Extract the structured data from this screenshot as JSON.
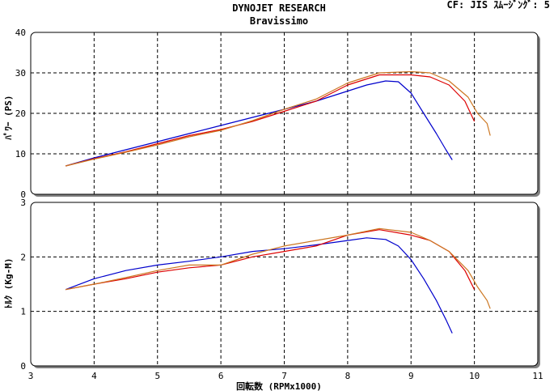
{
  "header": {
    "title": "DYNOJET  RESEARCH",
    "subtitle": "Bravissimo",
    "settings": "CF: JIS  ｽﾑｰｼﾞﾝｸﾞ: 5"
  },
  "chart_data": [
    {
      "type": "line",
      "ylabel": "ﾊﾟﾜｰ (PS)",
      "xlim": [
        3,
        11
      ],
      "ylim": [
        0,
        40
      ],
      "yticks": [
        "0",
        "10",
        "20",
        "30",
        "40"
      ],
      "grid": true,
      "series": [
        {
          "color": "#0000cc",
          "x": [
            3.55,
            4.0,
            4.5,
            5.0,
            5.5,
            6.0,
            6.5,
            7.0,
            7.5,
            8.0,
            8.3,
            8.6,
            8.8,
            9.0,
            9.2,
            9.4,
            9.55,
            9.65
          ],
          "y": [
            7.0,
            9.0,
            11.0,
            13.0,
            15.0,
            17.0,
            19.0,
            21.0,
            23.0,
            25.5,
            27.0,
            28.0,
            27.8,
            25.0,
            20.0,
            15.0,
            11.0,
            8.5
          ]
        },
        {
          "color": "#dd0000",
          "x": [
            3.55,
            4.0,
            4.5,
            5.0,
            5.5,
            6.0,
            6.5,
            7.0,
            7.5,
            8.0,
            8.5,
            9.0,
            9.3,
            9.6,
            9.85,
            10.0
          ],
          "y": [
            7.0,
            8.8,
            10.5,
            12.5,
            14.5,
            16.0,
            18.0,
            20.5,
            23.0,
            27.0,
            29.5,
            29.5,
            29.0,
            27.0,
            23.0,
            18.0
          ]
        },
        {
          "color": "#cc7722",
          "x": [
            3.55,
            4.0,
            4.5,
            5.0,
            5.5,
            6.0,
            6.5,
            7.0,
            7.5,
            8.0,
            8.5,
            9.0,
            9.3,
            9.6,
            9.9,
            10.05,
            10.2,
            10.25
          ],
          "y": [
            7.0,
            8.7,
            10.4,
            12.2,
            14.2,
            15.8,
            18.2,
            21.0,
            23.5,
            27.5,
            30.0,
            30.3,
            30.0,
            28.0,
            24.0,
            20.0,
            17.5,
            14.5
          ]
        }
      ]
    },
    {
      "type": "line",
      "xlabel": "回転数 (RPMx1000)",
      "ylabel": "ﾄﾙｸ (Kg-M)",
      "xlim": [
        3,
        11
      ],
      "ylim": [
        0,
        3
      ],
      "xticks": [
        "3",
        "4",
        "5",
        "6",
        "7",
        "8",
        "9",
        "10",
        "11"
      ],
      "yticks": [
        "0",
        "1",
        "2",
        "3"
      ],
      "grid": true,
      "series": [
        {
          "color": "#0000cc",
          "x": [
            3.55,
            4.0,
            4.5,
            5.0,
            5.5,
            6.0,
            6.5,
            7.0,
            7.5,
            8.0,
            8.3,
            8.6,
            8.8,
            9.0,
            9.2,
            9.4,
            9.55,
            9.65
          ],
          "y": [
            1.4,
            1.6,
            1.75,
            1.85,
            1.92,
            2.0,
            2.1,
            2.15,
            2.22,
            2.3,
            2.35,
            2.32,
            2.2,
            1.95,
            1.6,
            1.2,
            0.85,
            0.6
          ]
        },
        {
          "color": "#dd0000",
          "x": [
            3.55,
            4.0,
            4.5,
            5.0,
            5.5,
            6.0,
            6.5,
            7.0,
            7.5,
            8.0,
            8.5,
            9.0,
            9.3,
            9.6,
            9.85,
            10.0
          ],
          "y": [
            1.4,
            1.5,
            1.6,
            1.72,
            1.8,
            1.85,
            2.0,
            2.1,
            2.2,
            2.4,
            2.5,
            2.4,
            2.3,
            2.1,
            1.75,
            1.4
          ]
        },
        {
          "color": "#cc7722",
          "x": [
            3.55,
            4.0,
            4.5,
            5.0,
            5.5,
            6.0,
            6.5,
            7.0,
            7.5,
            8.0,
            8.5,
            9.0,
            9.3,
            9.6,
            9.9,
            10.05,
            10.2,
            10.25
          ],
          "y": [
            1.4,
            1.5,
            1.62,
            1.75,
            1.85,
            1.85,
            2.05,
            2.2,
            2.3,
            2.4,
            2.52,
            2.45,
            2.3,
            2.1,
            1.75,
            1.45,
            1.2,
            1.05
          ]
        }
      ]
    }
  ]
}
